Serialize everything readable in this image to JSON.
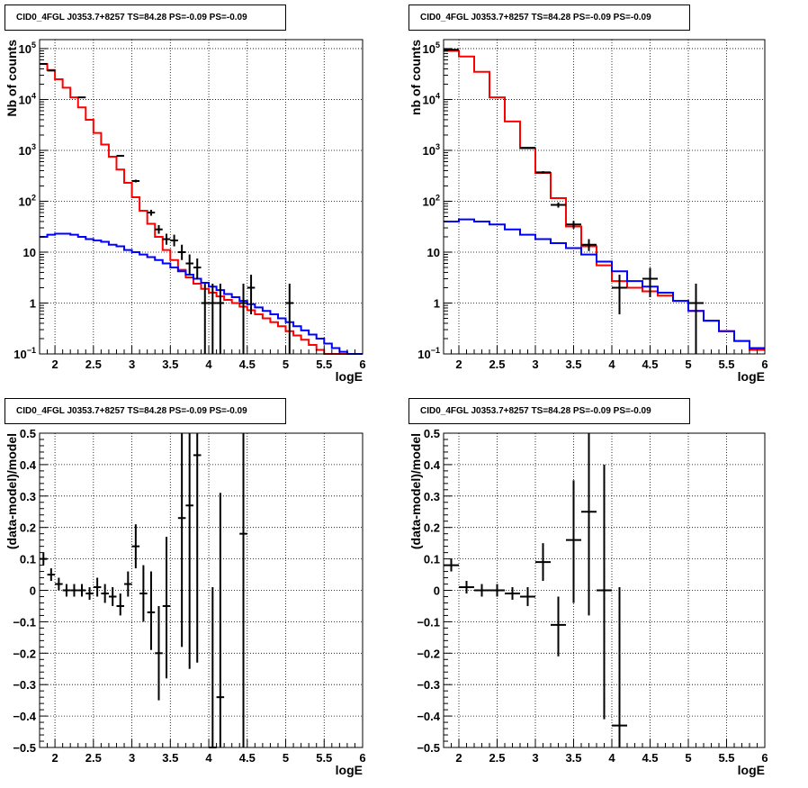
{
  "colors": {
    "model_total": "#ff0000",
    "model_background": "#0000ff",
    "data": "#000000",
    "grid": "#000000"
  },
  "chart_data": [
    {
      "type": "line",
      "title": "CID0_4FGL J0353.7+8257 TS=84.28 PS=-0.09 PS=-0.09",
      "xlabel": "logE",
      "ylabel": "Nb of counts",
      "ylog": true,
      "xlim": [
        1.8,
        6.0
      ],
      "ylim": [
        0.1,
        150000
      ],
      "grid": true,
      "xticks": [
        {
          "v": 2,
          "t": "2"
        },
        {
          "v": 2.5,
          "t": "2.5"
        },
        {
          "v": 3,
          "t": "3"
        },
        {
          "v": 3.5,
          "t": "3.5"
        },
        {
          "v": 4,
          "t": "4"
        },
        {
          "v": 4.5,
          "t": "4.5"
        },
        {
          "v": 5,
          "t": "5"
        },
        {
          "v": 5.5,
          "t": "5.5"
        },
        {
          "v": 6,
          "t": "6"
        }
      ],
      "yticks": [
        {
          "v": 0.1,
          "t": "10",
          "e": "−1"
        },
        {
          "v": 1,
          "t": "1"
        },
        {
          "v": 10,
          "t": "10"
        },
        {
          "v": 100,
          "t": "10",
          "e": "2"
        },
        {
          "v": 1000,
          "t": "10",
          "e": "3"
        },
        {
          "v": 10000,
          "t": "10",
          "e": "4"
        },
        {
          "v": 100000,
          "t": "10",
          "e": "5"
        }
      ],
      "edges": [
        1.8,
        1.9,
        2.0,
        2.1,
        2.2,
        2.3,
        2.4,
        2.5,
        2.6,
        2.7,
        2.8,
        2.9,
        3.0,
        3.1,
        3.2,
        3.3,
        3.4,
        3.5,
        3.6,
        3.7,
        3.8,
        3.9,
        4.0,
        4.1,
        4.2,
        4.3,
        4.4,
        4.5,
        4.6,
        4.7,
        4.8,
        4.9,
        5.0,
        5.1,
        5.2,
        5.3,
        5.4,
        5.5,
        5.6,
        5.7,
        5.8,
        5.9,
        6.0
      ],
      "series": [
        {
          "role": "model_total",
          "values": [
            50000,
            38000,
            25000,
            17000,
            11000,
            7000,
            4000,
            2200,
            1300,
            750,
            420,
            230,
            120,
            65,
            36,
            20,
            11,
            7,
            4.5,
            3.2,
            2.4,
            1.9,
            1.6,
            1.35,
            1.15,
            1.0,
            0.85,
            0.72,
            0.6,
            0.5,
            0.42,
            0.35,
            0.28,
            0.23,
            0.19,
            0.15,
            0.12,
            0.1,
            0.1,
            0.1,
            0.1,
            0.1
          ]
        },
        {
          "role": "model_background",
          "values": [
            20,
            22,
            23,
            23,
            22,
            20,
            18,
            17,
            16,
            14,
            13,
            11,
            10,
            9,
            8,
            7,
            6,
            5,
            4.2,
            3.6,
            3.0,
            2.5,
            2.1,
            1.8,
            1.5,
            1.3,
            1.1,
            0.95,
            0.82,
            0.7,
            0.6,
            0.5,
            0.42,
            0.35,
            0.29,
            0.24,
            0.2,
            0.16,
            0.13,
            0.11,
            0.1,
            0.1
          ]
        }
      ],
      "points": [
        {
          "x": 1.85,
          "y": 50000,
          "xerr": 0.05,
          "ylo": 49500,
          "yhi": 50500
        },
        {
          "x": 1.95,
          "y": 37000,
          "xerr": 0.05,
          "ylo": 36500,
          "yhi": 37500
        },
        {
          "x": 2.35,
          "y": 11000,
          "xerr": 0.05,
          "ylo": 10800,
          "yhi": 11200
        },
        {
          "x": 2.85,
          "y": 780,
          "xerr": 0.05,
          "ylo": 750,
          "yhi": 810
        },
        {
          "x": 3.05,
          "y": 250,
          "xerr": 0.05,
          "ylo": 235,
          "yhi": 266
        },
        {
          "x": 3.25,
          "y": 60,
          "xerr": 0.05,
          "ylo": 52,
          "yhi": 68
        },
        {
          "x": 3.35,
          "y": 28,
          "xerr": 0.05,
          "ylo": 23,
          "yhi": 34
        },
        {
          "x": 3.45,
          "y": 18,
          "xerr": 0.05,
          "ylo": 14,
          "yhi": 23
        },
        {
          "x": 3.55,
          "y": 17,
          "xerr": 0.05,
          "ylo": 13,
          "yhi": 22
        },
        {
          "x": 3.65,
          "y": 10,
          "xerr": 0.05,
          "ylo": 7,
          "yhi": 14
        },
        {
          "x": 3.75,
          "y": 6,
          "xerr": 0.05,
          "ylo": 3.7,
          "yhi": 9
        },
        {
          "x": 3.85,
          "y": 5,
          "xerr": 0.05,
          "ylo": 3,
          "yhi": 7.5
        },
        {
          "x": 3.95,
          "y": 1,
          "xerr": 0.05,
          "ylo": 0.1,
          "yhi": 2.4
        },
        {
          "x": 4.05,
          "y": 1,
          "xerr": 0.05,
          "ylo": 0.1,
          "yhi": 2.4
        },
        {
          "x": 4.15,
          "y": 1,
          "xerr": 0.05,
          "ylo": 0.1,
          "yhi": 2.4
        },
        {
          "x": 4.45,
          "y": 1,
          "xerr": 0.05,
          "ylo": 0.1,
          "yhi": 2.4
        },
        {
          "x": 4.55,
          "y": 2,
          "xerr": 0.05,
          "ylo": 0.6,
          "yhi": 3.6
        },
        {
          "x": 5.05,
          "y": 1,
          "xerr": 0.05,
          "ylo": 0.1,
          "yhi": 2.4
        }
      ]
    },
    {
      "type": "line",
      "title": "CID0_4FGL J0353.7+8257 TS=84.28 PS=-0.09 PS=-0.09",
      "xlabel": "logE",
      "ylabel": "nb of counts",
      "ylog": true,
      "xlim": [
        1.8,
        6.0
      ],
      "ylim": [
        0.1,
        150000
      ],
      "grid": true,
      "xticks": [
        {
          "v": 2,
          "t": "2"
        },
        {
          "v": 2.5,
          "t": "2.5"
        },
        {
          "v": 3,
          "t": "3"
        },
        {
          "v": 3.5,
          "t": "3.5"
        },
        {
          "v": 4,
          "t": "4"
        },
        {
          "v": 4.5,
          "t": "4.5"
        },
        {
          "v": 5,
          "t": "5"
        },
        {
          "v": 5.5,
          "t": "5.5"
        },
        {
          "v": 6,
          "t": "6"
        }
      ],
      "yticks": [
        {
          "v": 0.1,
          "t": "10",
          "e": "−1"
        },
        {
          "v": 1,
          "t": "1"
        },
        {
          "v": 10,
          "t": "10"
        },
        {
          "v": 100,
          "t": "10",
          "e": "2"
        },
        {
          "v": 1000,
          "t": "10",
          "e": "3"
        },
        {
          "v": 10000,
          "t": "10",
          "e": "4"
        },
        {
          "v": 100000,
          "t": "10",
          "e": "5"
        }
      ],
      "edges": [
        1.8,
        2.0,
        2.2,
        2.4,
        2.6,
        2.8,
        3.0,
        3.2,
        3.4,
        3.6,
        3.8,
        4.0,
        4.2,
        4.4,
        4.6,
        4.8,
        5.0,
        5.2,
        5.4,
        5.6,
        5.8,
        6.0
      ],
      "series": [
        {
          "role": "model_total",
          "values": [
            90000,
            70000,
            35000,
            11000,
            3700,
            1100,
            360,
            115,
            32,
            13,
            5.5,
            2.7,
            2.0,
            1.7,
            1.4,
            1.1,
            0.7,
            0.45,
            0.28,
            0.18,
            0.12
          ]
        },
        {
          "role": "model_background",
          "values": [
            40,
            44,
            40,
            35,
            28,
            22,
            18,
            15,
            12,
            9,
            6.5,
            4.2,
            2.7,
            2.1,
            1.6,
            1.1,
            0.7,
            0.45,
            0.28,
            0.18,
            0.13
          ]
        }
      ],
      "points": [
        {
          "x": 1.9,
          "y": 95000,
          "xerr": 0.1,
          "ylo": 94500,
          "yhi": 95500
        },
        {
          "x": 2.9,
          "y": 1120,
          "xerr": 0.1,
          "ylo": 1080,
          "yhi": 1160
        },
        {
          "x": 3.1,
          "y": 370,
          "xerr": 0.1,
          "ylo": 350,
          "yhi": 390
        },
        {
          "x": 3.3,
          "y": 85,
          "xerr": 0.1,
          "ylo": 75,
          "yhi": 95
        },
        {
          "x": 3.5,
          "y": 35,
          "xerr": 0.1,
          "ylo": 29,
          "yhi": 41
        },
        {
          "x": 3.7,
          "y": 14,
          "xerr": 0.1,
          "ylo": 10.5,
          "yhi": 18
        },
        {
          "x": 4.1,
          "y": 2,
          "xerr": 0.1,
          "ylo": 0.6,
          "yhi": 3.6
        },
        {
          "x": 4.5,
          "y": 3,
          "xerr": 0.1,
          "ylo": 1.3,
          "yhi": 4.9
        },
        {
          "x": 5.1,
          "y": 1,
          "xerr": 0.1,
          "ylo": 0.1,
          "yhi": 2.4
        }
      ]
    },
    {
      "type": "scatter",
      "title": "CID0_4FGL J0353.7+8257 TS=84.28 PS=-0.09 PS=-0.09",
      "xlabel": "logE",
      "ylabel": "(data-model)/model",
      "ylog": false,
      "xlim": [
        1.8,
        6.0
      ],
      "ylim": [
        -0.5,
        0.5
      ],
      "grid": true,
      "xticks": [
        {
          "v": 2,
          "t": "2"
        },
        {
          "v": 2.5,
          "t": "2.5"
        },
        {
          "v": 3,
          "t": "3"
        },
        {
          "v": 3.5,
          "t": "3.5"
        },
        {
          "v": 4,
          "t": "4"
        },
        {
          "v": 4.5,
          "t": "4.5"
        },
        {
          "v": 5,
          "t": "5"
        },
        {
          "v": 5.5,
          "t": "5.5"
        },
        {
          "v": 6,
          "t": "6"
        }
      ],
      "yticks": [
        {
          "v": -0.5,
          "t": "−0.5"
        },
        {
          "v": -0.4,
          "t": "−0.4"
        },
        {
          "v": -0.3,
          "t": "−0.3"
        },
        {
          "v": -0.2,
          "t": "−0.2"
        },
        {
          "v": -0.1,
          "t": "−0.1"
        },
        {
          "v": 0,
          "t": "0"
        },
        {
          "v": 0.1,
          "t": "0.1"
        },
        {
          "v": 0.2,
          "t": "0.2"
        },
        {
          "v": 0.3,
          "t": "0.3"
        },
        {
          "v": 0.4,
          "t": "0.4"
        },
        {
          "v": 0.5,
          "t": "0.5"
        }
      ],
      "points": [
        {
          "x": 1.85,
          "y": 0.1,
          "xerr": 0.05,
          "ylo": 0.08,
          "yhi": 0.12
        },
        {
          "x": 1.95,
          "y": 0.05,
          "xerr": 0.05,
          "ylo": 0.03,
          "yhi": 0.07
        },
        {
          "x": 2.05,
          "y": 0.02,
          "xerr": 0.05,
          "ylo": 0.0,
          "yhi": 0.04
        },
        {
          "x": 2.15,
          "y": 0.0,
          "xerr": 0.05,
          "ylo": -0.02,
          "yhi": 0.02
        },
        {
          "x": 2.25,
          "y": 0.0,
          "xerr": 0.05,
          "ylo": -0.02,
          "yhi": 0.02
        },
        {
          "x": 2.35,
          "y": 0.0,
          "xerr": 0.05,
          "ylo": -0.02,
          "yhi": 0.02
        },
        {
          "x": 2.45,
          "y": -0.01,
          "xerr": 0.05,
          "ylo": -0.03,
          "yhi": 0.01
        },
        {
          "x": 2.55,
          "y": 0.01,
          "xerr": 0.05,
          "ylo": -0.02,
          "yhi": 0.04
        },
        {
          "x": 2.65,
          "y": -0.01,
          "xerr": 0.05,
          "ylo": -0.04,
          "yhi": 0.02
        },
        {
          "x": 2.75,
          "y": -0.02,
          "xerr": 0.05,
          "ylo": -0.05,
          "yhi": 0.01
        },
        {
          "x": 2.85,
          "y": -0.05,
          "xerr": 0.05,
          "ylo": -0.08,
          "yhi": -0.01
        },
        {
          "x": 2.95,
          "y": 0.02,
          "xerr": 0.05,
          "ylo": -0.02,
          "yhi": 0.06
        },
        {
          "x": 3.05,
          "y": 0.14,
          "xerr": 0.05,
          "ylo": 0.07,
          "yhi": 0.21
        },
        {
          "x": 3.15,
          "y": -0.01,
          "xerr": 0.05,
          "ylo": -0.1,
          "yhi": 0.08
        },
        {
          "x": 3.25,
          "y": -0.07,
          "xerr": 0.05,
          "ylo": -0.19,
          "yhi": 0.06
        },
        {
          "x": 3.35,
          "y": -0.2,
          "xerr": 0.05,
          "ylo": -0.35,
          "yhi": -0.05
        },
        {
          "x": 3.45,
          "y": -0.05,
          "xerr": 0.05,
          "ylo": -0.28,
          "yhi": 0.17
        },
        {
          "x": 3.65,
          "y": 0.23,
          "xerr": 0.05,
          "ylo": -0.18,
          "yhi": 0.5
        },
        {
          "x": 3.75,
          "y": 0.27,
          "xerr": 0.05,
          "ylo": -0.25,
          "yhi": 0.5
        },
        {
          "x": 3.85,
          "y": 0.43,
          "xerr": 0.05,
          "ylo": -0.23,
          "yhi": 0.5
        },
        {
          "x": 4.05,
          "y": -0.5,
          "xerr": 0.05,
          "ylo": -0.5,
          "yhi": 0.01
        },
        {
          "x": 4.15,
          "y": -0.34,
          "xerr": 0.05,
          "ylo": -0.5,
          "yhi": 0.31
        },
        {
          "x": 4.45,
          "y": 0.18,
          "xerr": 0.05,
          "ylo": -0.5,
          "yhi": 0.5
        }
      ]
    },
    {
      "type": "scatter",
      "title": "CID0_4FGL J0353.7+8257 TS=84.28 PS=-0.09 PS=-0.09",
      "xlabel": "logE",
      "ylabel": "(data-model)/model",
      "ylog": false,
      "xlim": [
        1.8,
        6.0
      ],
      "ylim": [
        -0.5,
        0.5
      ],
      "grid": true,
      "xticks": [
        {
          "v": 2,
          "t": "2"
        },
        {
          "v": 2.5,
          "t": "2.5"
        },
        {
          "v": 3,
          "t": "3"
        },
        {
          "v": 3.5,
          "t": "3.5"
        },
        {
          "v": 4,
          "t": "4"
        },
        {
          "v": 4.5,
          "t": "4.5"
        },
        {
          "v": 5,
          "t": "5"
        },
        {
          "v": 5.5,
          "t": "5.5"
        },
        {
          "v": 6,
          "t": "6"
        }
      ],
      "yticks": [
        {
          "v": -0.5,
          "t": "−0.5"
        },
        {
          "v": -0.4,
          "t": "−0.4"
        },
        {
          "v": -0.3,
          "t": "−0.3"
        },
        {
          "v": -0.2,
          "t": "−0.2"
        },
        {
          "v": -0.1,
          "t": "−0.1"
        },
        {
          "v": 0,
          "t": "0"
        },
        {
          "v": 0.1,
          "t": "0.1"
        },
        {
          "v": 0.2,
          "t": "0.2"
        },
        {
          "v": 0.3,
          "t": "0.3"
        },
        {
          "v": 0.4,
          "t": "0.4"
        },
        {
          "v": 0.5,
          "t": "0.5"
        }
      ],
      "points": [
        {
          "x": 1.9,
          "y": 0.08,
          "xerr": 0.1,
          "ylo": 0.06,
          "yhi": 0.1
        },
        {
          "x": 2.1,
          "y": 0.01,
          "xerr": 0.1,
          "ylo": -0.01,
          "yhi": 0.03
        },
        {
          "x": 2.3,
          "y": 0.0,
          "xerr": 0.1,
          "ylo": -0.02,
          "yhi": 0.02
        },
        {
          "x": 2.5,
          "y": 0.0,
          "xerr": 0.1,
          "ylo": -0.02,
          "yhi": 0.02
        },
        {
          "x": 2.7,
          "y": -0.01,
          "xerr": 0.1,
          "ylo": -0.03,
          "yhi": 0.01
        },
        {
          "x": 2.9,
          "y": -0.02,
          "xerr": 0.1,
          "ylo": -0.05,
          "yhi": 0.01
        },
        {
          "x": 3.1,
          "y": 0.09,
          "xerr": 0.1,
          "ylo": 0.03,
          "yhi": 0.15
        },
        {
          "x": 3.3,
          "y": -0.11,
          "xerr": 0.1,
          "ylo": -0.21,
          "yhi": -0.02
        },
        {
          "x": 3.5,
          "y": 0.16,
          "xerr": 0.1,
          "ylo": -0.04,
          "yhi": 0.35
        },
        {
          "x": 3.7,
          "y": 0.25,
          "xerr": 0.1,
          "ylo": -0.08,
          "yhi": 0.5
        },
        {
          "x": 3.9,
          "y": 0.0,
          "xerr": 0.1,
          "ylo": -0.41,
          "yhi": 0.4
        },
        {
          "x": 4.1,
          "y": -0.43,
          "xerr": 0.1,
          "ylo": -0.5,
          "yhi": 0.01
        }
      ]
    }
  ]
}
